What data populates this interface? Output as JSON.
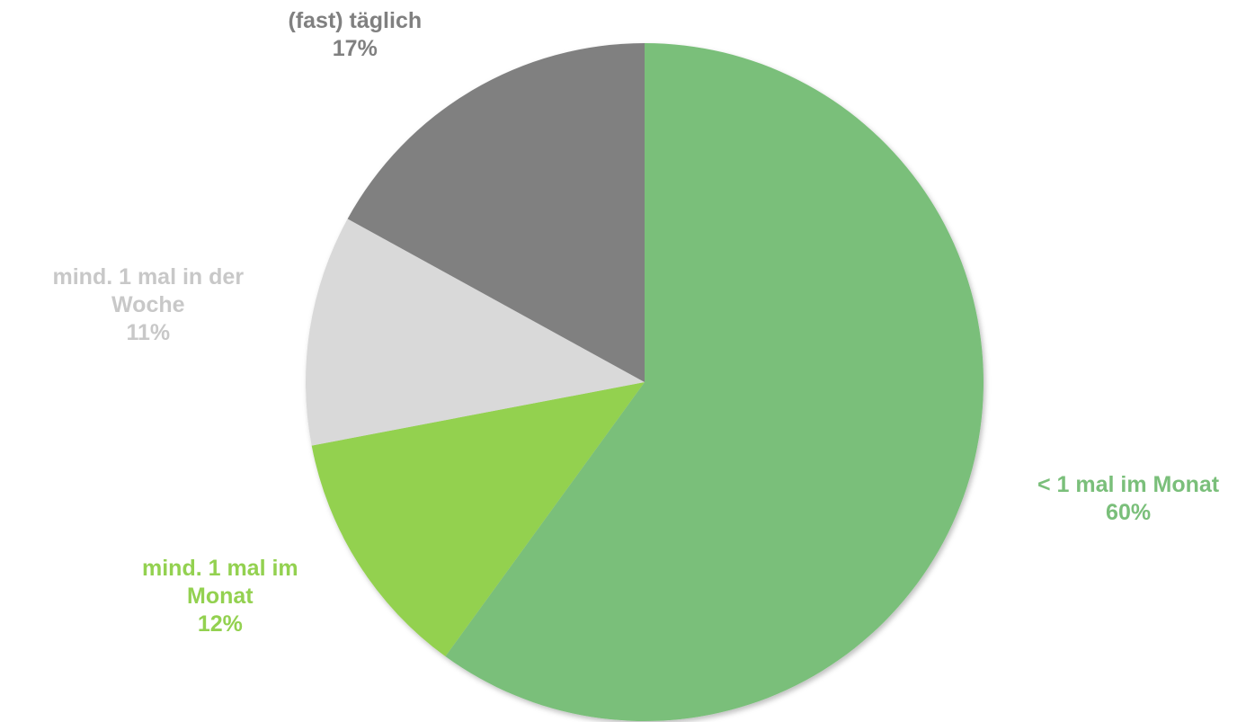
{
  "chart_data": {
    "type": "pie",
    "title": "",
    "start_angle_deg": 0,
    "direction": "clockwise",
    "slices": [
      {
        "label_lines": [
          "< 1 mal im Monat"
        ],
        "value": 60,
        "value_label": "60%",
        "color": "#7abf7a",
        "label_color": "#7abf7a"
      },
      {
        "label_lines": [
          "mind. 1 mal im",
          "Monat"
        ],
        "value": 12,
        "value_label": "12%",
        "color": "#93d150",
        "label_color": "#93d150"
      },
      {
        "label_lines": [
          "mind. 1 mal in der",
          "Woche"
        ],
        "value": 11,
        "value_label": "11%",
        "color": "#d9d9d9",
        "label_color": "#c8c8c8"
      },
      {
        "label_lines": [
          "(fast) täglich"
        ],
        "value": 17,
        "value_label": "17%",
        "color": "#808080",
        "label_color": "#808080"
      }
    ]
  }
}
